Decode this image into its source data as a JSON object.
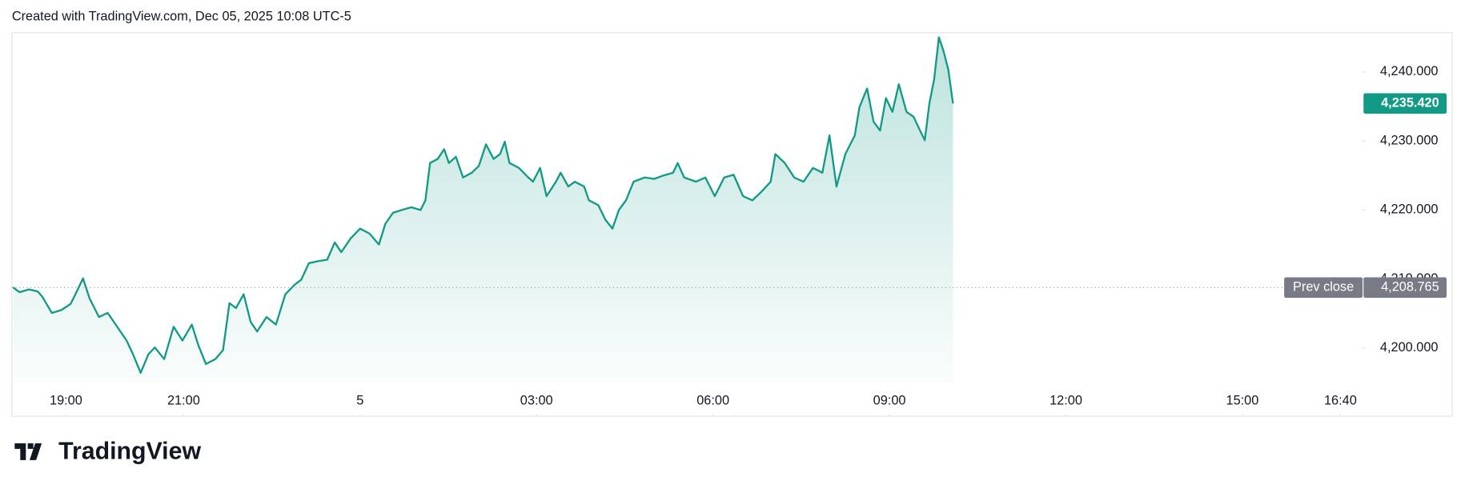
{
  "chart_data": {
    "type": "area",
    "title": "Created with TradingView.com, Dec 05, 2025 10:08 UTC-5",
    "brand": "TradingView",
    "color": "#129a86",
    "x": [
      18.1,
      18.21,
      18.37,
      18.52,
      18.6,
      18.76,
      18.92,
      19.08,
      19.16,
      19.29,
      19.4,
      19.56,
      19.71,
      19.87,
      20.03,
      20.14,
      20.27,
      20.4,
      20.51,
      20.67,
      20.83,
      20.98,
      21.14,
      21.25,
      21.38,
      21.54,
      21.67,
      21.78,
      21.89,
      22.02,
      22.14,
      22.25,
      22.41,
      22.57,
      22.73,
      22.89,
      23.0,
      23.13,
      23.29,
      23.44,
      23.57,
      23.68,
      23.84,
      24.0,
      24.16,
      24.32,
      24.43,
      24.56,
      24.71,
      24.87,
      25.03,
      25.11,
      25.19,
      25.32,
      25.43,
      25.51,
      25.63,
      25.75,
      25.9,
      26.02,
      26.14,
      26.27,
      26.38,
      26.46,
      26.54,
      26.7,
      26.86,
      26.94,
      27.06,
      27.17,
      27.33,
      27.41,
      27.54,
      27.65,
      27.81,
      27.89,
      28.05,
      28.17,
      28.29,
      28.4,
      28.52,
      28.65,
      28.84,
      29.0,
      29.16,
      29.32,
      29.4,
      29.51,
      29.71,
      29.87,
      30.03,
      30.19,
      30.35,
      30.51,
      30.67,
      30.83,
      30.98,
      31.06,
      31.22,
      31.38,
      31.54,
      31.7,
      31.86,
      31.98,
      32.1,
      32.25,
      32.41,
      32.49,
      32.62,
      32.73,
      32.84,
      32.94,
      33.05,
      33.16,
      33.29,
      33.41,
      33.52,
      33.6,
      33.68,
      33.76,
      33.84,
      33.92,
      34.0,
      34.08
    ],
    "values": [
      4208.8,
      4208.1,
      4208.5,
      4208.2,
      4207.4,
      4205.1,
      4205.5,
      4206.4,
      4207.8,
      4210.1,
      4207.2,
      4204.5,
      4205.1,
      4203.1,
      4201.1,
      4199.1,
      4196.4,
      4199.1,
      4200.1,
      4198.4,
      4203.1,
      4201.1,
      4203.4,
      4200.4,
      4197.7,
      4198.4,
      4199.7,
      4206.5,
      4205.8,
      4207.8,
      4203.8,
      4202.4,
      4204.5,
      4203.4,
      4207.8,
      4209.2,
      4209.9,
      4212.3,
      4212.6,
      4212.8,
      4215.3,
      4213.9,
      4215.9,
      4217.3,
      4216.6,
      4215.0,
      4218.0,
      4219.6,
      4220.0,
      4220.4,
      4220.0,
      4221.4,
      4226.8,
      4227.4,
      4228.8,
      4226.8,
      4227.7,
      4224.7,
      4225.4,
      4226.4,
      4229.5,
      4227.4,
      4228.1,
      4229.9,
      4226.8,
      4226.1,
      4224.7,
      4224.1,
      4226.1,
      4222.0,
      4224.1,
      4225.4,
      4223.4,
      4224.1,
      4223.4,
      4221.4,
      4220.7,
      4218.6,
      4217.3,
      4220.0,
      4221.4,
      4224.1,
      4224.7,
      4224.5,
      4225.0,
      4225.4,
      4226.8,
      4224.7,
      4224.1,
      4224.7,
      4222.0,
      4224.7,
      4225.1,
      4222.0,
      4221.4,
      4222.7,
      4224.1,
      4228.1,
      4226.8,
      4224.7,
      4224.1,
      4226.1,
      4225.4,
      4230.8,
      4223.4,
      4228.1,
      4230.8,
      4234.9,
      4237.6,
      4232.8,
      4231.5,
      4236.2,
      4234.2,
      4238.2,
      4234.2,
      4233.5,
      4231.5,
      4230.1,
      4235.5,
      4238.9,
      4245.0,
      4243.0,
      4240.3,
      4235.42
    ],
    "xlim": [
      18.08,
      40.98
    ],
    "xticks": [
      {
        "value": 19,
        "label": "19:00"
      },
      {
        "value": 21,
        "label": "21:00"
      },
      {
        "value": 24,
        "label": "5"
      },
      {
        "value": 27,
        "label": "03:00"
      },
      {
        "value": 30,
        "label": "06:00"
      },
      {
        "value": 33,
        "label": "09:00"
      },
      {
        "value": 36,
        "label": "12:00"
      },
      {
        "value": 39,
        "label": "15:00"
      },
      {
        "value": 40.667,
        "label": "16:40"
      }
    ],
    "ylim": [
      4195,
      4245.68
    ],
    "yticks": [
      {
        "value": 4200,
        "label": "4,200.000"
      },
      {
        "value": 4210,
        "label": "4,210.000"
      },
      {
        "value": 4220,
        "label": "4,220.000"
      },
      {
        "value": 4230,
        "label": "4,230.000"
      },
      {
        "value": 4240,
        "label": "4,240.000"
      }
    ],
    "last": {
      "value": 4235.42,
      "label": "4,235.420"
    },
    "prev_close": {
      "name": "Prev close",
      "value": 4208.765,
      "label": "4,208.765"
    }
  }
}
